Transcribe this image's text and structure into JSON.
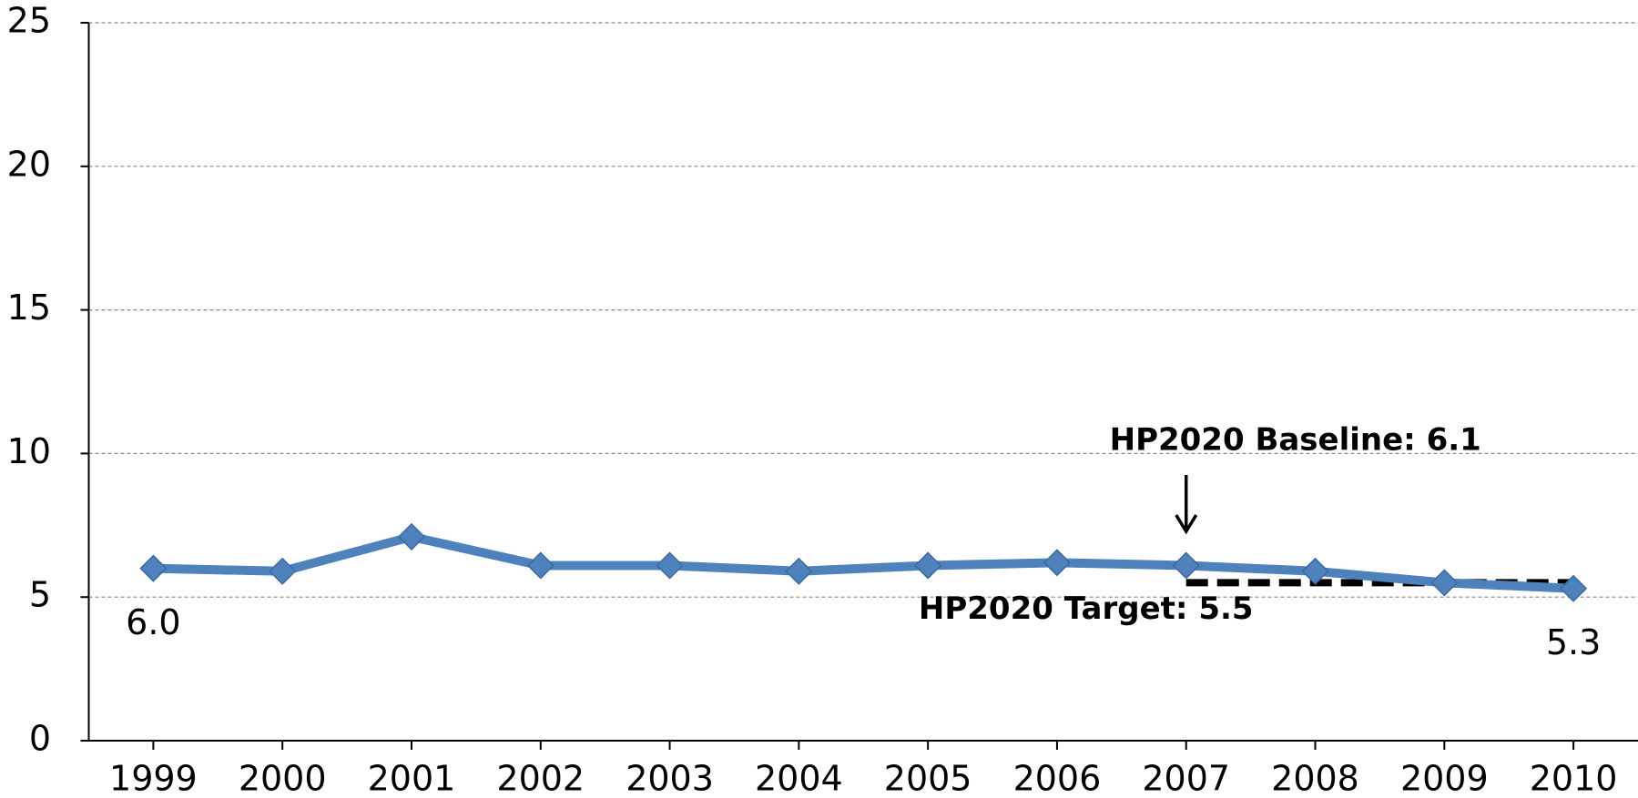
{
  "chart_data": {
    "type": "line",
    "categories": [
      "1999",
      "2000",
      "2001",
      "2002",
      "2003",
      "2004",
      "2005",
      "2006",
      "2007",
      "2008",
      "2009",
      "2010"
    ],
    "series": [
      {
        "color": "#4f81bd",
        "values": [
          6.0,
          5.9,
          7.1,
          6.1,
          6.1,
          5.9,
          6.1,
          6.2,
          6.1,
          5.9,
          5.5,
          5.3
        ],
        "value_labels": [
          "6.0",
          null,
          null,
          null,
          null,
          null,
          null,
          null,
          null,
          null,
          null,
          "5.3"
        ]
      }
    ],
    "ylim": [
      0,
      25
    ],
    "yticks": [
      0,
      5,
      10,
      15,
      20,
      25
    ],
    "grid": true,
    "target": {
      "value": 5.5,
      "color": "#000000",
      "start": "2007",
      "end": "2010",
      "label": "HP2020 Target: 5.5"
    },
    "baseline": {
      "category": "2007",
      "label": "HP2020 Baseline: 6.1"
    }
  }
}
